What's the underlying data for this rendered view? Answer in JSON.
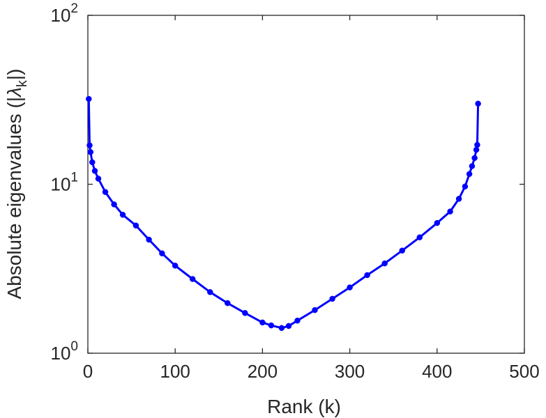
{
  "chart_data": {
    "type": "line",
    "xlabel": "Rank (k)",
    "ylabel_parts": [
      "Absolute eigenvalues (|",
      "λ",
      "k",
      "|)"
    ],
    "xlim": [
      0,
      500
    ],
    "ylim": [
      1,
      100
    ],
    "yscale": "log",
    "grid": false,
    "x_ticks": [
      "0",
      "100",
      "200",
      "300",
      "400",
      "500"
    ],
    "y_ticks": [
      {
        "value": 1,
        "base": "10",
        "exp": "0"
      },
      {
        "value": 10,
        "base": "10",
        "exp": "1"
      },
      {
        "value": 100,
        "base": "10",
        "exp": "2"
      }
    ],
    "colors": {
      "series": "#0000FF",
      "axis": "#262626"
    },
    "series": [
      {
        "marker": "circle",
        "x": [
          1,
          2,
          3,
          5,
          8,
          12,
          20,
          30,
          40,
          55,
          70,
          85,
          100,
          120,
          140,
          160,
          180,
          200,
          210,
          222,
          230,
          240,
          260,
          280,
          300,
          320,
          340,
          360,
          380,
          400,
          415,
          425,
          432,
          437,
          440,
          443,
          445,
          446,
          447
        ],
        "y": [
          32,
          17,
          15.5,
          13.5,
          12,
          10.8,
          9.0,
          7.6,
          6.6,
          5.7,
          4.7,
          3.9,
          3.3,
          2.75,
          2.3,
          1.98,
          1.73,
          1.52,
          1.46,
          1.41,
          1.45,
          1.56,
          1.8,
          2.1,
          2.45,
          2.9,
          3.4,
          4.05,
          4.85,
          5.9,
          6.9,
          8.2,
          9.7,
          11.5,
          12.8,
          14.3,
          16,
          17.1,
          30
        ]
      }
    ]
  }
}
